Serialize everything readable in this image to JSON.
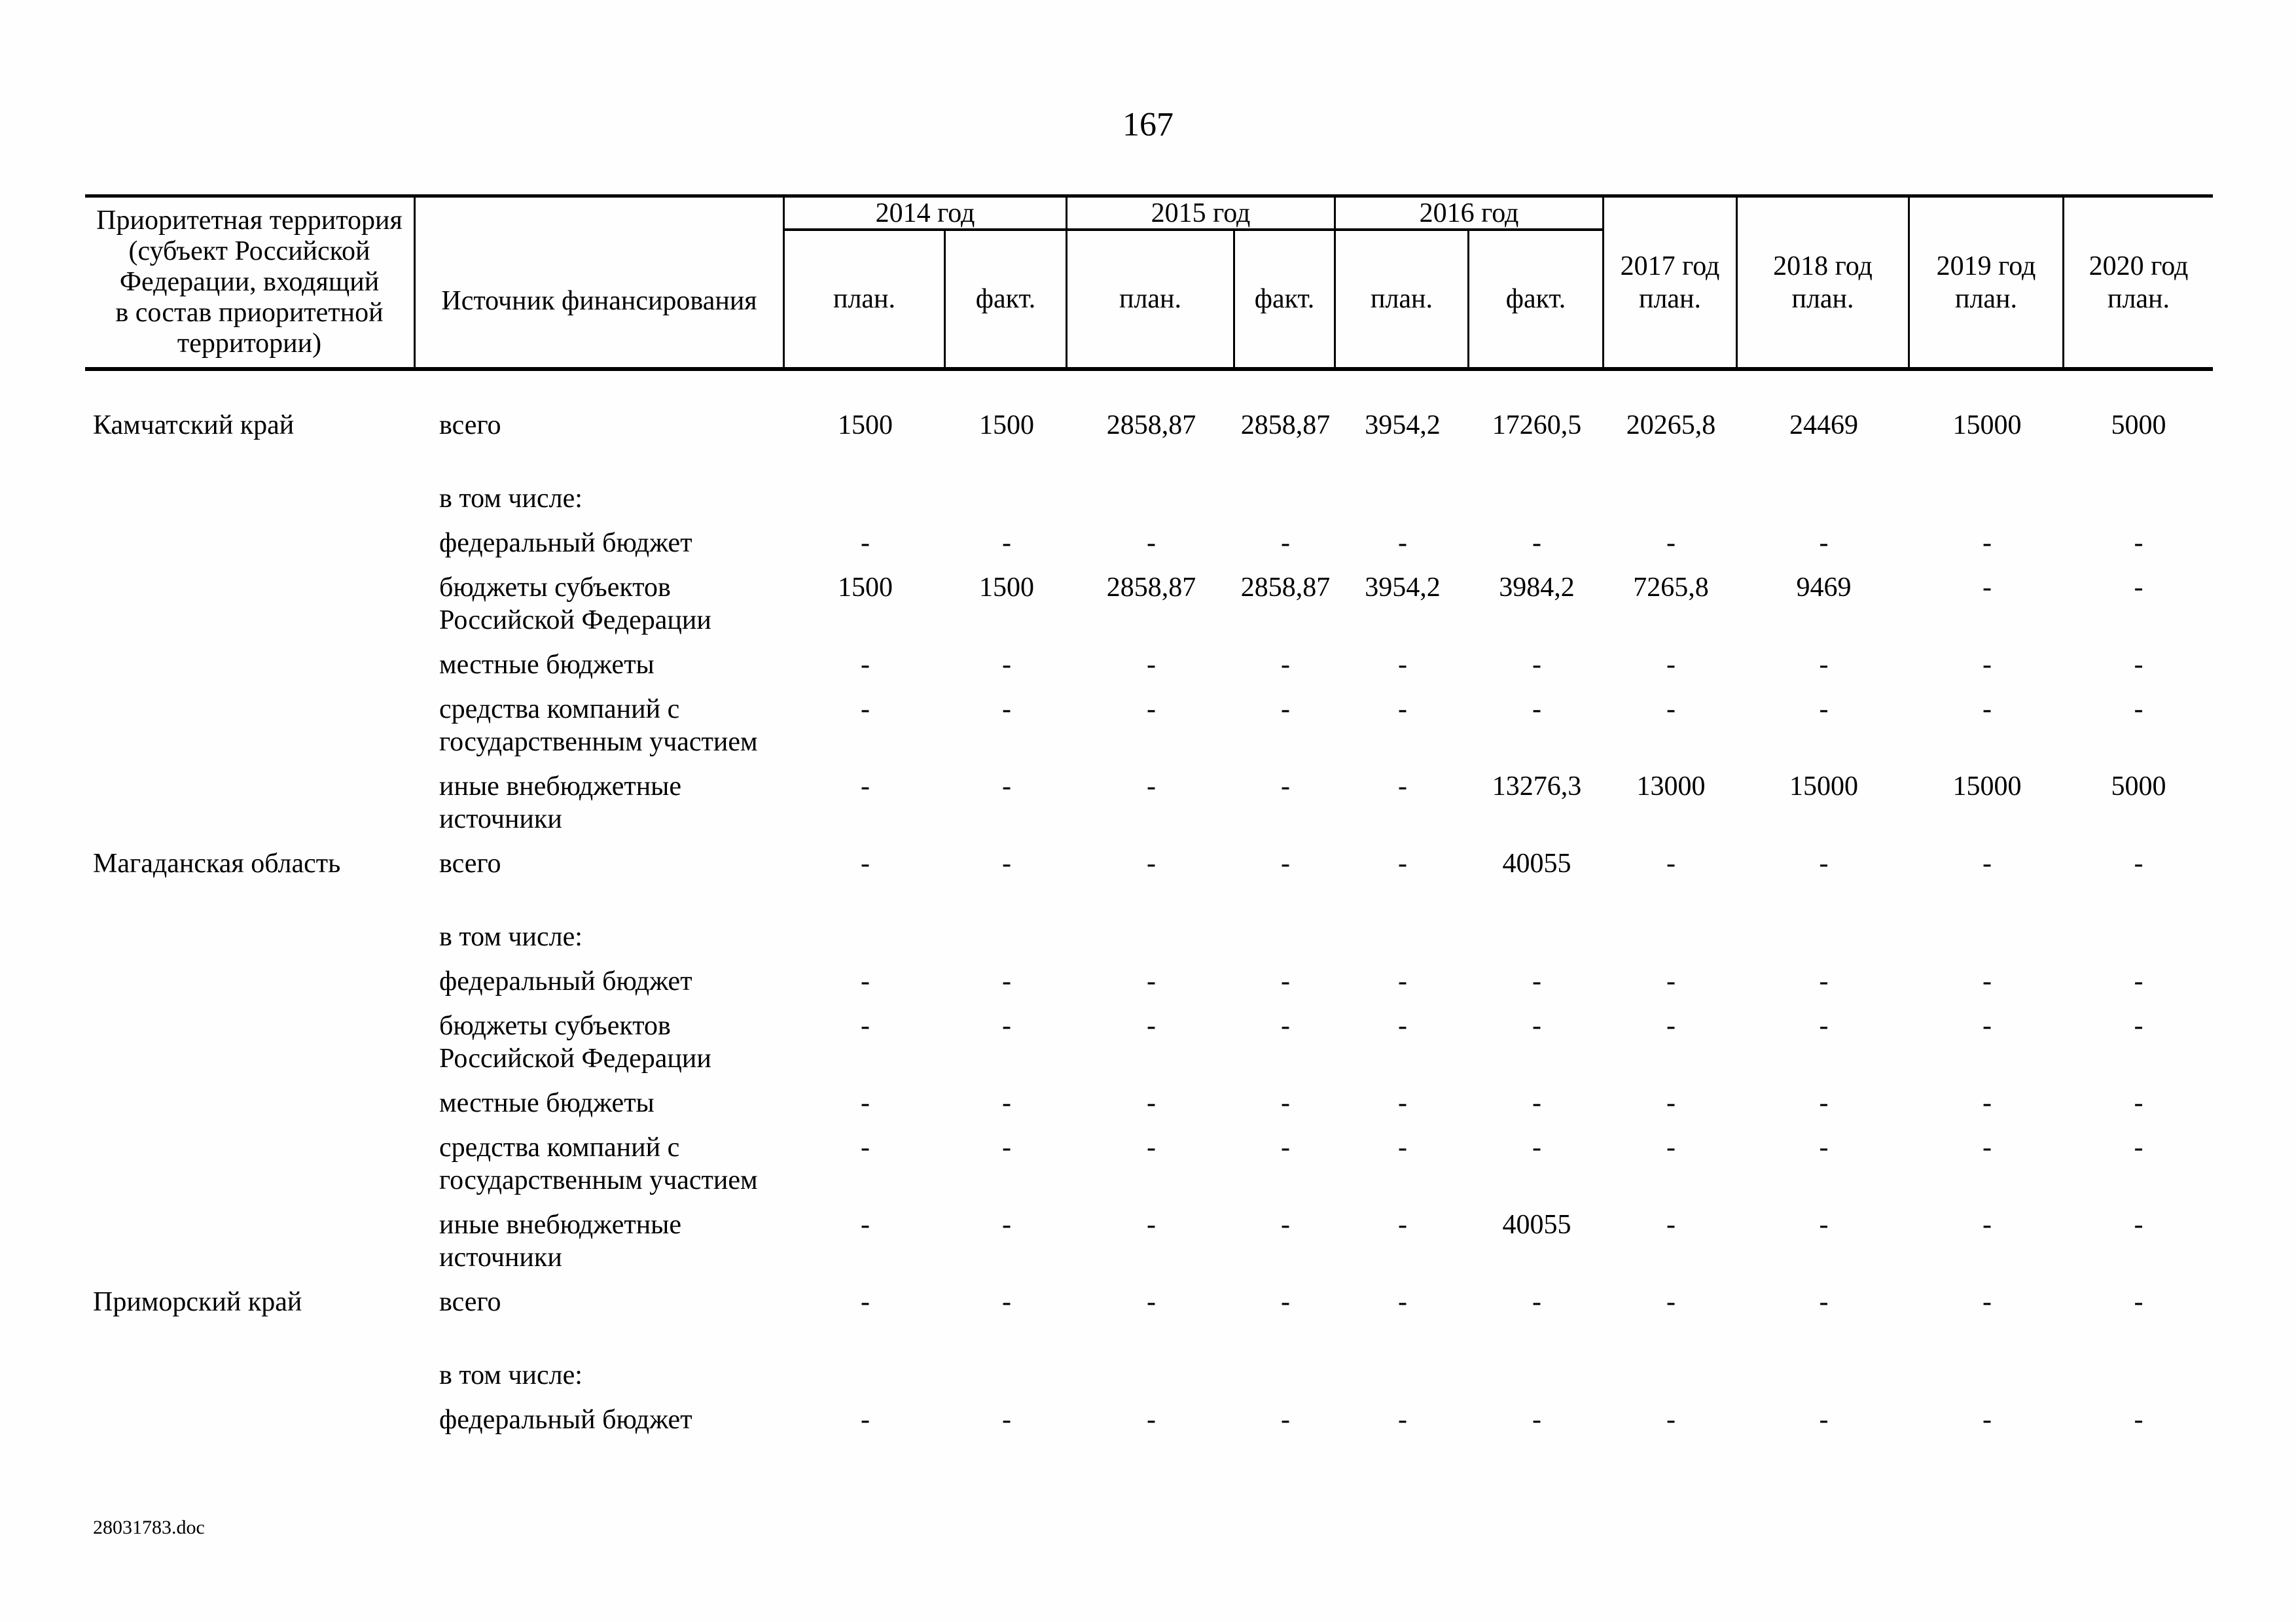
{
  "page": {
    "number": "167",
    "footer": "28031783.doc"
  },
  "table": {
    "headers": {
      "territory": "Приоритетная территория\n(субъект Российской\nФедерации, входящий\nв состав приоритетной\nтерритории)",
      "source": "Источник финансирования",
      "year_groups": [
        {
          "label": "2014 год",
          "sub": [
            "план.",
            "факт."
          ]
        },
        {
          "label": "2015 год",
          "sub": [
            "план.",
            "факт."
          ]
        },
        {
          "label": "2016 год",
          "sub": [
            "план.",
            "факт."
          ]
        }
      ],
      "single_years": [
        "2017 год\nплан.",
        "2018 год\nплан.",
        "2019 год\nплан.",
        "2020 год\nплан."
      ]
    },
    "rows": [
      {
        "type": "total",
        "territory": "Камчатский край",
        "source": "всего",
        "values": [
          "1500",
          "1500",
          "2858,87",
          "2858,87",
          "3954,2",
          "17260,5",
          "20265,8",
          "24469",
          "15000",
          "5000"
        ]
      },
      {
        "type": "subhead",
        "territory": "",
        "source": "в том числе:",
        "values": []
      },
      {
        "type": "item",
        "territory": "",
        "source": "федеральный бюджет",
        "values": [
          "-",
          "-",
          "-",
          "-",
          "-",
          "-",
          "-",
          "-",
          "-",
          "-"
        ]
      },
      {
        "type": "item",
        "territory": "",
        "source": "бюджеты субъектов Российской Федерации",
        "values": [
          "1500",
          "1500",
          "2858,87",
          "2858,87",
          "3954,2",
          "3984,2",
          "7265,8",
          "9469",
          "-",
          "-"
        ]
      },
      {
        "type": "item",
        "territory": "",
        "source": "местные бюджеты",
        "values": [
          "-",
          "-",
          "-",
          "-",
          "-",
          "-",
          "-",
          "-",
          "-",
          "-"
        ]
      },
      {
        "type": "item",
        "territory": "",
        "source": "средства компаний с государственным участием",
        "values": [
          "-",
          "-",
          "-",
          "-",
          "-",
          "-",
          "-",
          "-",
          "-",
          "-"
        ]
      },
      {
        "type": "item",
        "territory": "",
        "source": "иные внебюджетные источники",
        "values": [
          "-",
          "-",
          "-",
          "-",
          "-",
          "13276,3",
          "13000",
          "15000",
          "15000",
          "5000"
        ]
      },
      {
        "type": "total",
        "territory": "Магаданская область",
        "source": "всего",
        "values": [
          "-",
          "-",
          "-",
          "-",
          "-",
          "40055",
          "-",
          "-",
          "-",
          "-"
        ]
      },
      {
        "type": "subhead",
        "territory": "",
        "source": "в том числе:",
        "values": []
      },
      {
        "type": "item",
        "territory": "",
        "source": "федеральный бюджет",
        "values": [
          "-",
          "-",
          "-",
          "-",
          "-",
          "-",
          "-",
          "-",
          "-",
          "-"
        ]
      },
      {
        "type": "item",
        "territory": "",
        "source": "бюджеты субъектов Российской Федерации",
        "values": [
          "-",
          "-",
          "-",
          "-",
          "-",
          "-",
          "-",
          "-",
          "-",
          "-"
        ]
      },
      {
        "type": "item",
        "territory": "",
        "source": "местные бюджеты",
        "values": [
          "-",
          "-",
          "-",
          "-",
          "-",
          "-",
          "-",
          "-",
          "-",
          "-"
        ]
      },
      {
        "type": "item",
        "territory": "",
        "source": "средства компаний с государственным участием",
        "values": [
          "-",
          "-",
          "-",
          "-",
          "-",
          "-",
          "-",
          "-",
          "-",
          "-"
        ]
      },
      {
        "type": "item",
        "territory": "",
        "source": "иные внебюджетные источники",
        "values": [
          "-",
          "-",
          "-",
          "-",
          "-",
          "40055",
          "-",
          "-",
          "-",
          "-"
        ]
      },
      {
        "type": "total",
        "territory": "Приморский край",
        "source": "всего",
        "values": [
          "-",
          "-",
          "-",
          "-",
          "-",
          "-",
          "-",
          "-",
          "-",
          "-"
        ]
      },
      {
        "type": "subhead",
        "territory": "",
        "source": "в том числе:",
        "values": []
      },
      {
        "type": "item",
        "territory": "",
        "source": "федеральный бюджет",
        "values": [
          "-",
          "-",
          "-",
          "-",
          "-",
          "-",
          "-",
          "-",
          "-",
          "-"
        ]
      }
    ]
  }
}
